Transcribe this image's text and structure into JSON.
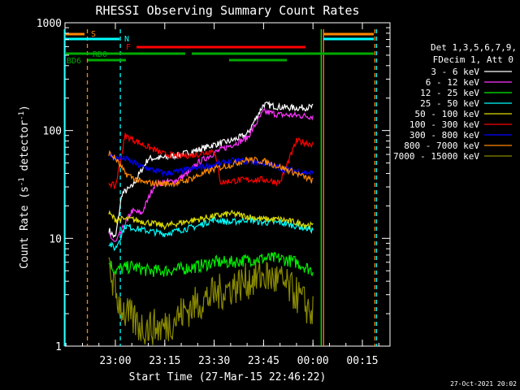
{
  "chart_data": {
    "type": "line",
    "title": "RHESSI Observing Summary Count Rates",
    "xlabel": "Start Time (27-Mar-15 22:46:22)",
    "ylabel": "Count Rate (s",
    "ylabel_sup": "-1",
    "ylabel_tail": " detector",
    "ylabel_sup2": "-1",
    "ylabel_close": ")",
    "timestamp": "27-Oct-2021 20:02",
    "y_scale": "log",
    "ylim": [
      1,
      1000
    ],
    "xlim_minutes": [
      -16,
      30
    ],
    "x_ticks": [
      {
        "label": "23:00",
        "t": 0
      },
      {
        "label": "23:15",
        "t": 15
      },
      {
        "label": "23:30",
        "t": 30
      },
      {
        "label": "23:45",
        "t": 45
      },
      {
        "label": "00:00",
        "t": 60
      },
      {
        "label": "00:15",
        "t": 75
      }
    ],
    "y_ticks": [
      {
        "label": "1",
        "v": 1
      },
      {
        "label": "10",
        "v": 10
      },
      {
        "label": "100",
        "v": 100
      },
      {
        "label": "1000",
        "v": 1000
      }
    ],
    "legend_header": [
      "Det 1,3,5,6,7,9,",
      "FDecim 1, Att 0"
    ],
    "legend_position": "right",
    "series": [
      {
        "name": "3 - 6 keV",
        "color": "#000000",
        "points": [
          [
            -2,
            12
          ],
          [
            0,
            10
          ],
          [
            2,
            26
          ],
          [
            5,
            30
          ],
          [
            10,
            55
          ],
          [
            15,
            56
          ],
          [
            20,
            60
          ],
          [
            25,
            66
          ],
          [
            30,
            74
          ],
          [
            35,
            80
          ],
          [
            40,
            92
          ],
          [
            45,
            175
          ],
          [
            50,
            165
          ],
          [
            55,
            162
          ],
          [
            60,
            165
          ]
        ]
      },
      {
        "name": "6 - 12 keV",
        "color": "#ff33ff",
        "points": [
          [
            -2,
            11
          ],
          [
            0,
            9
          ],
          [
            5,
            18
          ],
          [
            8,
            17
          ],
          [
            12,
            32
          ],
          [
            18,
            34
          ],
          [
            22,
            40
          ],
          [
            25,
            50
          ],
          [
            30,
            62
          ],
          [
            35,
            73
          ],
          [
            40,
            85
          ],
          [
            45,
            150
          ],
          [
            50,
            140
          ],
          [
            55,
            138
          ],
          [
            60,
            135
          ]
        ]
      },
      {
        "name": "12 - 25 keV",
        "color": "#00ee00",
        "points": [
          [
            -2,
            6
          ],
          [
            0,
            5
          ],
          [
            5,
            5.5
          ],
          [
            10,
            5
          ],
          [
            15,
            5
          ],
          [
            20,
            5.2
          ],
          [
            25,
            5.5
          ],
          [
            30,
            6
          ],
          [
            35,
            6
          ],
          [
            40,
            6.3
          ],
          [
            45,
            6.5
          ],
          [
            50,
            6.5
          ],
          [
            55,
            6
          ],
          [
            60,
            5
          ]
        ]
      },
      {
        "name": "25 - 50 keV",
        "color": "#00ffff",
        "points": [
          [
            -2,
            9
          ],
          [
            0,
            8
          ],
          [
            3,
            13
          ],
          [
            8,
            12
          ],
          [
            15,
            11
          ],
          [
            20,
            12
          ],
          [
            25,
            13
          ],
          [
            30,
            15
          ],
          [
            35,
            14
          ],
          [
            40,
            15
          ],
          [
            45,
            14
          ],
          [
            50,
            14
          ],
          [
            55,
            13
          ],
          [
            60,
            12
          ]
        ]
      },
      {
        "name": "50 - 100 keV",
        "color": "#dddd00",
        "points": [
          [
            -2,
            17
          ],
          [
            0,
            15
          ],
          [
            5,
            15
          ],
          [
            10,
            14
          ],
          [
            15,
            13
          ],
          [
            20,
            14
          ],
          [
            25,
            15
          ],
          [
            30,
            16
          ],
          [
            35,
            17
          ],
          [
            40,
            16
          ],
          [
            45,
            15
          ],
          [
            50,
            15
          ],
          [
            55,
            14
          ],
          [
            60,
            13
          ]
        ]
      },
      {
        "name": "100 - 300 keV",
        "color": "#ff0000",
        "points": [
          [
            -2,
            33
          ],
          [
            0,
            30
          ],
          [
            3,
            90
          ],
          [
            8,
            75
          ],
          [
            15,
            60
          ],
          [
            20,
            58
          ],
          [
            25,
            60
          ],
          [
            30,
            66
          ],
          [
            32,
            33
          ],
          [
            35,
            34
          ],
          [
            40,
            35
          ],
          [
            45,
            35
          ],
          [
            50,
            33
          ],
          [
            55,
            80
          ],
          [
            60,
            75
          ]
        ]
      },
      {
        "name": "300 - 800 keV",
        "color": "#0000ff",
        "points": [
          [
            -2,
            60
          ],
          [
            0,
            55
          ],
          [
            3,
            55
          ],
          [
            8,
            46
          ],
          [
            15,
            40
          ],
          [
            20,
            42
          ],
          [
            25,
            45
          ],
          [
            30,
            48
          ],
          [
            35,
            52
          ],
          [
            40,
            52
          ],
          [
            45,
            50
          ],
          [
            50,
            45
          ],
          [
            55,
            42
          ],
          [
            60,
            40
          ]
        ]
      },
      {
        "name": "800 - 7000 keV",
        "color": "#ff8800",
        "points": [
          [
            -2,
            62
          ],
          [
            0,
            55
          ],
          [
            3,
            40
          ],
          [
            8,
            33
          ],
          [
            15,
            32
          ],
          [
            20,
            33
          ],
          [
            25,
            38
          ],
          [
            30,
            44
          ],
          [
            35,
            48
          ],
          [
            40,
            54
          ],
          [
            45,
            52
          ],
          [
            50,
            46
          ],
          [
            55,
            40
          ],
          [
            60,
            34
          ]
        ]
      },
      {
        "name": "7000 - 15000 keV",
        "color": "#888800",
        "points": [
          [
            -2,
            6
          ],
          [
            0,
            3
          ],
          [
            3,
            2
          ],
          [
            8,
            1.5
          ],
          [
            15,
            1.5
          ],
          [
            20,
            2
          ],
          [
            25,
            2.5
          ],
          [
            30,
            3
          ],
          [
            35,
            3.5
          ],
          [
            40,
            4
          ],
          [
            45,
            4.5
          ],
          [
            50,
            4
          ],
          [
            55,
            3
          ],
          [
            60,
            2
          ]
        ]
      }
    ],
    "flags": [
      {
        "label": "S",
        "color": "#ff8800"
      },
      {
        "label": "N",
        "color": "#00ffff"
      },
      {
        "label": "F",
        "color": "#ff0000"
      },
      {
        "label": "RDO",
        "color": "#00aa00"
      },
      {
        "label": "BD6",
        "color": "#00aa00"
      }
    ]
  }
}
